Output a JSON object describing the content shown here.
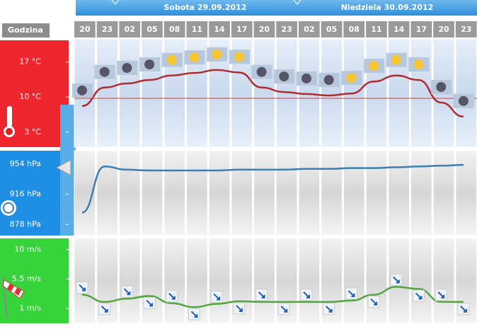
{
  "header": {
    "label": "Godzina",
    "dates": [
      "Sobota 29.09.2012",
      "Niedziela 30.09.2012"
    ]
  },
  "chart_data": [
    {
      "type": "line",
      "categories": [
        "20",
        "23",
        "02",
        "05",
        "08",
        "11",
        "14",
        "17",
        "20",
        "23",
        "02",
        "05",
        "08",
        "11",
        "14",
        "17",
        "20",
        "23"
      ],
      "values": [
        8.2,
        11.9,
        12.7,
        13.4,
        14.3,
        14.8,
        15.4,
        14.9,
        11.9,
        11.0,
        10.6,
        10.3,
        10.7,
        13.1,
        14.3,
        13.4,
        8.9,
        6.1
      ],
      "color": "#b02a30",
      "ylim": [
        0,
        21.6
      ],
      "yticks": [
        {
          "value": 17,
          "label": "17 °C"
        },
        {
          "value": 10,
          "label": "10 °C"
        },
        {
          "value": 3,
          "label": "3 °C"
        }
      ]
    },
    {
      "type": "line",
      "values": [
        893,
        951,
        947,
        946,
        946,
        946,
        946,
        947,
        947,
        947,
        948,
        948,
        949,
        949,
        950,
        951,
        952,
        953
      ],
      "color": "#3b7fb4",
      "ylim": [
        864,
        971
      ],
      "yticks": [
        {
          "value": 954,
          "label": "954 hPa"
        },
        {
          "value": 916,
          "label": "916 hPa"
        },
        {
          "value": 878,
          "label": "878 hPa"
        }
      ]
    },
    {
      "type": "line",
      "values": [
        3.1,
        2.0,
        2.5,
        2.9,
        1.8,
        1.2,
        1.7,
        2.1,
        2.0,
        2.0,
        2.0,
        2.0,
        2.2,
        3.1,
        4.3,
        4.0,
        2.0,
        2.0
      ],
      "color": "#4ea83c",
      "ylim": [
        -1.25,
        11.7
      ],
      "yticks": [
        {
          "value": 10,
          "label": "10 m/s"
        },
        {
          "value": 5.5,
          "label": "5.5 m/s"
        },
        {
          "value": 1,
          "label": "1 m/s"
        }
      ]
    }
  ]
}
